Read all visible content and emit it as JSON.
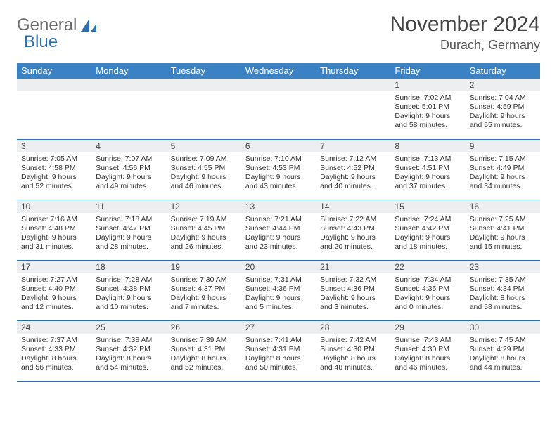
{
  "logo": {
    "text1": "General",
    "text2": "Blue"
  },
  "title": "November 2024",
  "location": "Durach, Germany",
  "colors": {
    "header_bg": "#3a82c4",
    "header_fg": "#ffffff",
    "daynum_bg": "#eceef0",
    "row_border": "#2e6fb0",
    "logo_gray": "#6b6b6b",
    "logo_blue": "#2e6fb0"
  },
  "weekdays": [
    "Sunday",
    "Monday",
    "Tuesday",
    "Wednesday",
    "Thursday",
    "Friday",
    "Saturday"
  ],
  "first_weekday_index": 5,
  "days": [
    {
      "n": 1,
      "sunrise": "7:02 AM",
      "sunset": "5:01 PM",
      "dl": "9 hours and 58 minutes."
    },
    {
      "n": 2,
      "sunrise": "7:04 AM",
      "sunset": "4:59 PM",
      "dl": "9 hours and 55 minutes."
    },
    {
      "n": 3,
      "sunrise": "7:05 AM",
      "sunset": "4:58 PM",
      "dl": "9 hours and 52 minutes."
    },
    {
      "n": 4,
      "sunrise": "7:07 AM",
      "sunset": "4:56 PM",
      "dl": "9 hours and 49 minutes."
    },
    {
      "n": 5,
      "sunrise": "7:09 AM",
      "sunset": "4:55 PM",
      "dl": "9 hours and 46 minutes."
    },
    {
      "n": 6,
      "sunrise": "7:10 AM",
      "sunset": "4:53 PM",
      "dl": "9 hours and 43 minutes."
    },
    {
      "n": 7,
      "sunrise": "7:12 AM",
      "sunset": "4:52 PM",
      "dl": "9 hours and 40 minutes."
    },
    {
      "n": 8,
      "sunrise": "7:13 AM",
      "sunset": "4:51 PM",
      "dl": "9 hours and 37 minutes."
    },
    {
      "n": 9,
      "sunrise": "7:15 AM",
      "sunset": "4:49 PM",
      "dl": "9 hours and 34 minutes."
    },
    {
      "n": 10,
      "sunrise": "7:16 AM",
      "sunset": "4:48 PM",
      "dl": "9 hours and 31 minutes."
    },
    {
      "n": 11,
      "sunrise": "7:18 AM",
      "sunset": "4:47 PM",
      "dl": "9 hours and 28 minutes."
    },
    {
      "n": 12,
      "sunrise": "7:19 AM",
      "sunset": "4:45 PM",
      "dl": "9 hours and 26 minutes."
    },
    {
      "n": 13,
      "sunrise": "7:21 AM",
      "sunset": "4:44 PM",
      "dl": "9 hours and 23 minutes."
    },
    {
      "n": 14,
      "sunrise": "7:22 AM",
      "sunset": "4:43 PM",
      "dl": "9 hours and 20 minutes."
    },
    {
      "n": 15,
      "sunrise": "7:24 AM",
      "sunset": "4:42 PM",
      "dl": "9 hours and 18 minutes."
    },
    {
      "n": 16,
      "sunrise": "7:25 AM",
      "sunset": "4:41 PM",
      "dl": "9 hours and 15 minutes."
    },
    {
      "n": 17,
      "sunrise": "7:27 AM",
      "sunset": "4:40 PM",
      "dl": "9 hours and 12 minutes."
    },
    {
      "n": 18,
      "sunrise": "7:28 AM",
      "sunset": "4:38 PM",
      "dl": "9 hours and 10 minutes."
    },
    {
      "n": 19,
      "sunrise": "7:30 AM",
      "sunset": "4:37 PM",
      "dl": "9 hours and 7 minutes."
    },
    {
      "n": 20,
      "sunrise": "7:31 AM",
      "sunset": "4:36 PM",
      "dl": "9 hours and 5 minutes."
    },
    {
      "n": 21,
      "sunrise": "7:32 AM",
      "sunset": "4:36 PM",
      "dl": "9 hours and 3 minutes."
    },
    {
      "n": 22,
      "sunrise": "7:34 AM",
      "sunset": "4:35 PM",
      "dl": "9 hours and 0 minutes."
    },
    {
      "n": 23,
      "sunrise": "7:35 AM",
      "sunset": "4:34 PM",
      "dl": "8 hours and 58 minutes."
    },
    {
      "n": 24,
      "sunrise": "7:37 AM",
      "sunset": "4:33 PM",
      "dl": "8 hours and 56 minutes."
    },
    {
      "n": 25,
      "sunrise": "7:38 AM",
      "sunset": "4:32 PM",
      "dl": "8 hours and 54 minutes."
    },
    {
      "n": 26,
      "sunrise": "7:39 AM",
      "sunset": "4:31 PM",
      "dl": "8 hours and 52 minutes."
    },
    {
      "n": 27,
      "sunrise": "7:41 AM",
      "sunset": "4:31 PM",
      "dl": "8 hours and 50 minutes."
    },
    {
      "n": 28,
      "sunrise": "7:42 AM",
      "sunset": "4:30 PM",
      "dl": "8 hours and 48 minutes."
    },
    {
      "n": 29,
      "sunrise": "7:43 AM",
      "sunset": "4:30 PM",
      "dl": "8 hours and 46 minutes."
    },
    {
      "n": 30,
      "sunrise": "7:45 AM",
      "sunset": "4:29 PM",
      "dl": "8 hours and 44 minutes."
    }
  ],
  "labels": {
    "sunrise": "Sunrise: ",
    "sunset": "Sunset: ",
    "daylight": "Daylight: "
  }
}
